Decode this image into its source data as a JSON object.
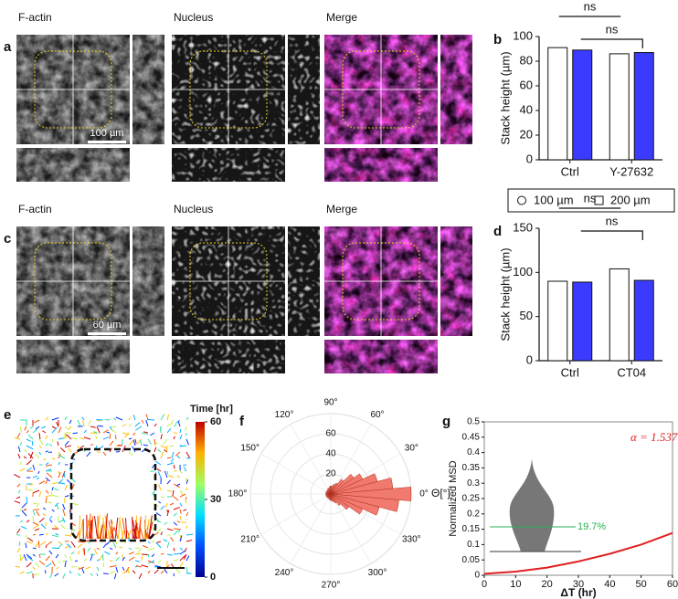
{
  "panels": {
    "a": {
      "label": "a",
      "titles": [
        "F-actin",
        "Nucleus",
        "Merge"
      ],
      "scale_bar": "100 µm"
    },
    "c": {
      "label": "c",
      "titles": [
        "F-actin",
        "Nucleus",
        "Merge"
      ],
      "scale_bar": "60 µm"
    },
    "e": {
      "label": "e",
      "colorbar_title": "Time [hr]",
      "colorbar_ticks": [
        0,
        30,
        60
      ],
      "colorbar_lim": [
        0,
        60
      ]
    }
  },
  "chart_data": [
    {
      "type": "bar",
      "label": "b",
      "ylabel": "Stack height (µm)",
      "categories": [
        "Ctrl",
        "Y-27632"
      ],
      "series": [
        {
          "name": "100 µm",
          "color": "#ffffff",
          "values": [
            91,
            86
          ]
        },
        {
          "name": "200 µm",
          "color": "#3b3bff",
          "values": [
            89,
            87
          ]
        }
      ],
      "ylim": [
        0,
        100
      ],
      "yticks": [
        0,
        20,
        40,
        60,
        80,
        100
      ],
      "annotations": [
        "ns",
        "ns"
      ]
    },
    {
      "type": "bar",
      "label": "d",
      "ylabel": "Stack height (µm)",
      "categories": [
        "Ctrl",
        "CT04"
      ],
      "series": [
        {
          "color": "#ffffff",
          "values": [
            90,
            104
          ]
        },
        {
          "color": "#3b3bff",
          "values": [
            89,
            91
          ]
        }
      ],
      "ylim": [
        0,
        150
      ],
      "yticks": [
        0,
        50,
        100,
        150
      ],
      "annotations": [
        "ns",
        "ns"
      ]
    },
    {
      "type": "polar",
      "label": "f",
      "axis_label": "Θ[°]",
      "color": "#f07a6e",
      "x": [
        0,
        10,
        20,
        30,
        40,
        50,
        60,
        70,
        80,
        90,
        100,
        110,
        120,
        130,
        140,
        150,
        160,
        170,
        180,
        190,
        200,
        210,
        220,
        230,
        240,
        250,
        260,
        270,
        280,
        290,
        300,
        310,
        320,
        330,
        340,
        350
      ],
      "values": [
        80,
        62,
        48,
        35,
        28,
        18,
        12,
        10,
        8,
        8,
        7,
        6,
        6,
        5,
        5,
        5,
        5,
        5,
        5,
        5,
        5,
        5,
        5,
        5,
        5,
        5,
        6,
        6,
        7,
        8,
        10,
        14,
        22,
        35,
        50,
        68
      ],
      "rlim": [
        0,
        80
      ],
      "rticks": [
        20,
        40,
        60
      ],
      "angle_ticks": [
        {
          "value": 0,
          "label": "0°"
        },
        {
          "value": 30,
          "label": "30°"
        },
        {
          "value": 60,
          "label": "60°"
        },
        {
          "value": 90,
          "label": "90°"
        },
        {
          "value": 120,
          "label": "120°"
        },
        {
          "value": 150,
          "label": "150°"
        },
        {
          "value": 180,
          "label": "180°"
        },
        {
          "value": 210,
          "label": "210°"
        },
        {
          "value": 240,
          "label": "240°"
        },
        {
          "value": 270,
          "label": "270°"
        },
        {
          "value": 300,
          "label": "300°"
        },
        {
          "value": 330,
          "label": "330°"
        }
      ]
    },
    {
      "type": "line",
      "label": "g",
      "xlabel": "ΔT (hr)",
      "ylabel": "Normalized MSD",
      "color": "#e02020",
      "x": [
        0,
        10,
        20,
        30,
        40,
        50,
        60
      ],
      "values": [
        0.005,
        0.012,
        0.025,
        0.045,
        0.07,
        0.1,
        0.138
      ],
      "xlim": [
        0,
        60
      ],
      "xticks": [
        0,
        10,
        20,
        30,
        40,
        50,
        60
      ],
      "ylim": [
        0,
        0.5
      ],
      "yticks": [
        0,
        0.05,
        0.1,
        0.15,
        0.2,
        0.25,
        0.3,
        0.35,
        0.4,
        0.45,
        0.5
      ],
      "annotations": [
        "α = 1.537",
        "19.7%"
      ]
    }
  ]
}
